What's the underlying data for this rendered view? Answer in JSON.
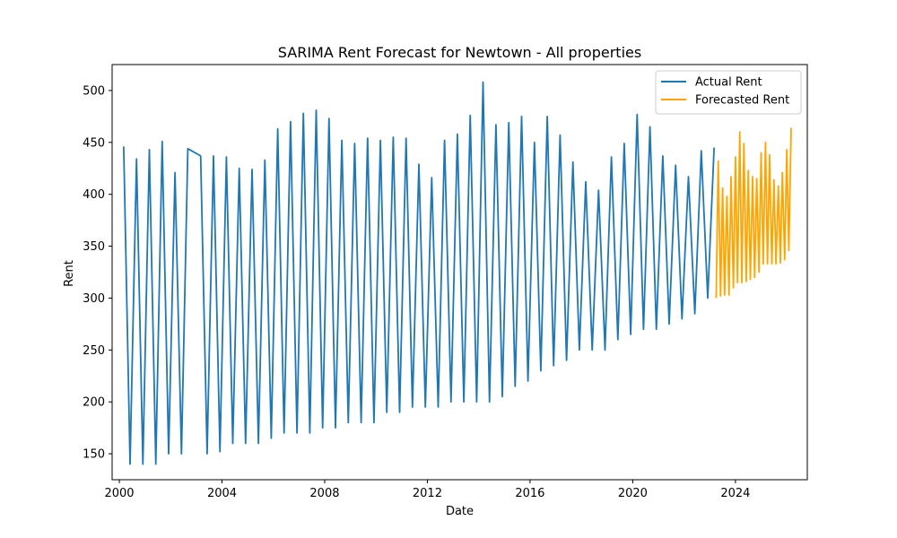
{
  "chart_data": {
    "type": "line",
    "title": "SARIMA Rent Forecast for Newtown - All properties",
    "xlabel": "Date",
    "ylabel": "Rent",
    "x_scale": "date",
    "xlim": [
      1999.72,
      2026.8
    ],
    "ylim": [
      125,
      525
    ],
    "x_ticks": [
      2000,
      2004,
      2008,
      2012,
      2016,
      2020,
      2024
    ],
    "y_ticks": [
      150,
      200,
      250,
      300,
      350,
      400,
      450,
      500
    ],
    "grid": false,
    "legend_position": "top-right",
    "series": [
      {
        "name": "Actual Rent",
        "color": "#1f77b4",
        "points": [
          [
            2000.17,
            446
          ],
          [
            2000.42,
            140
          ],
          [
            2000.67,
            434
          ],
          [
            2000.92,
            140
          ],
          [
            2001.17,
            443
          ],
          [
            2001.42,
            140
          ],
          [
            2001.67,
            451
          ],
          [
            2001.92,
            150
          ],
          [
            2002.17,
            421
          ],
          [
            2002.42,
            150
          ],
          [
            2002.67,
            444
          ],
          [
            2003.17,
            437
          ],
          [
            2003.42,
            150
          ],
          [
            2003.67,
            437
          ],
          [
            2003.92,
            152
          ],
          [
            2004.17,
            436
          ],
          [
            2004.42,
            160
          ],
          [
            2004.67,
            425
          ],
          [
            2004.92,
            160
          ],
          [
            2005.17,
            424
          ],
          [
            2005.42,
            160
          ],
          [
            2005.67,
            433
          ],
          [
            2005.92,
            165
          ],
          [
            2006.17,
            463
          ],
          [
            2006.42,
            170
          ],
          [
            2006.67,
            470
          ],
          [
            2006.92,
            170
          ],
          [
            2007.17,
            478
          ],
          [
            2007.42,
            170
          ],
          [
            2007.67,
            481
          ],
          [
            2007.92,
            175
          ],
          [
            2008.17,
            473
          ],
          [
            2008.42,
            175
          ],
          [
            2008.67,
            452
          ],
          [
            2008.92,
            180
          ],
          [
            2009.17,
            449
          ],
          [
            2009.42,
            180
          ],
          [
            2009.67,
            454
          ],
          [
            2009.92,
            180
          ],
          [
            2010.17,
            452
          ],
          [
            2010.42,
            190
          ],
          [
            2010.67,
            455
          ],
          [
            2010.92,
            190
          ],
          [
            2011.17,
            454
          ],
          [
            2011.42,
            195
          ],
          [
            2011.67,
            429
          ],
          [
            2011.92,
            195
          ],
          [
            2012.17,
            416
          ],
          [
            2012.42,
            195
          ],
          [
            2012.67,
            452
          ],
          [
            2012.92,
            200
          ],
          [
            2013.17,
            458
          ],
          [
            2013.42,
            200
          ],
          [
            2013.67,
            476
          ],
          [
            2013.92,
            200
          ],
          [
            2014.17,
            508
          ],
          [
            2014.42,
            200
          ],
          [
            2014.67,
            467
          ],
          [
            2014.92,
            205
          ],
          [
            2015.17,
            469
          ],
          [
            2015.42,
            215
          ],
          [
            2015.67,
            475
          ],
          [
            2015.92,
            220
          ],
          [
            2016.17,
            450
          ],
          [
            2016.42,
            230
          ],
          [
            2016.67,
            475
          ],
          [
            2016.92,
            235
          ],
          [
            2017.17,
            457
          ],
          [
            2017.42,
            240
          ],
          [
            2017.67,
            431
          ],
          [
            2017.92,
            250
          ],
          [
            2018.17,
            412
          ],
          [
            2018.42,
            250
          ],
          [
            2018.67,
            404
          ],
          [
            2018.92,
            250
          ],
          [
            2019.17,
            436
          ],
          [
            2019.42,
            260
          ],
          [
            2019.67,
            449
          ],
          [
            2019.92,
            265
          ],
          [
            2020.17,
            477
          ],
          [
            2020.42,
            270
          ],
          [
            2020.67,
            465
          ],
          [
            2020.92,
            270
          ],
          [
            2021.17,
            437
          ],
          [
            2021.42,
            275
          ],
          [
            2021.67,
            428
          ],
          [
            2021.92,
            280
          ],
          [
            2022.17,
            417
          ],
          [
            2022.42,
            285
          ],
          [
            2022.67,
            442
          ],
          [
            2022.92,
            300
          ],
          [
            2023.17,
            445
          ]
        ]
      },
      {
        "name": "Forecasted Rent",
        "color": "#ffa500",
        "points": [
          [
            2023.25,
            300
          ],
          [
            2023.33,
            432
          ],
          [
            2023.42,
            302
          ],
          [
            2023.5,
            406
          ],
          [
            2023.58,
            303
          ],
          [
            2023.67,
            398
          ],
          [
            2023.75,
            303
          ],
          [
            2023.83,
            417
          ],
          [
            2023.92,
            310
          ],
          [
            2024.0,
            436
          ],
          [
            2024.08,
            315
          ],
          [
            2024.17,
            460
          ],
          [
            2024.25,
            315
          ],
          [
            2024.33,
            449
          ],
          [
            2024.42,
            316
          ],
          [
            2024.5,
            423
          ],
          [
            2024.58,
            318
          ],
          [
            2024.67,
            417
          ],
          [
            2024.75,
            320
          ],
          [
            2024.83,
            415
          ],
          [
            2024.92,
            325
          ],
          [
            2025.0,
            440
          ],
          [
            2025.08,
            333
          ],
          [
            2025.17,
            450
          ],
          [
            2025.25,
            333
          ],
          [
            2025.33,
            438
          ],
          [
            2025.42,
            333
          ],
          [
            2025.5,
            414
          ],
          [
            2025.58,
            333
          ],
          [
            2025.67,
            408
          ],
          [
            2025.75,
            334
          ],
          [
            2025.83,
            421
          ],
          [
            2025.92,
            337
          ],
          [
            2026.0,
            443
          ],
          [
            2026.08,
            346
          ],
          [
            2026.17,
            464
          ]
        ]
      }
    ]
  }
}
